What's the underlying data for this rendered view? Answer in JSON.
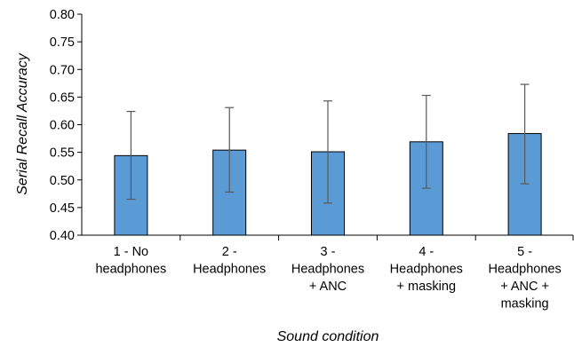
{
  "chart_data": {
    "type": "bar",
    "title": "",
    "xlabel": "Sound condition",
    "ylabel": "Serial Recall Accuracy",
    "ylim": [
      0.4,
      0.8
    ],
    "yticks": [
      "0.40",
      "0.45",
      "0.50",
      "0.55",
      "0.60",
      "0.65",
      "0.70",
      "0.75",
      "0.80"
    ],
    "grid": false,
    "legend": "none",
    "bar_color": "#5b9bd5",
    "bar_edge_color": "#000000",
    "errorbar_color": "#595959",
    "categories": [
      [
        "1 - No",
        "headphones"
      ],
      [
        "2 -",
        "Headphones"
      ],
      [
        "3 -",
        "Headphones",
        "+ ANC"
      ],
      [
        "4 -",
        "Headphones",
        "+ masking"
      ],
      [
        "5 -",
        "Headphones",
        "+ ANC +",
        "masking"
      ]
    ],
    "values": [
      0.544,
      0.554,
      0.551,
      0.569,
      0.584
    ],
    "error_low": [
      0.465,
      0.478,
      0.458,
      0.485,
      0.493
    ],
    "error_high": [
      0.624,
      0.631,
      0.643,
      0.653,
      0.673
    ]
  }
}
